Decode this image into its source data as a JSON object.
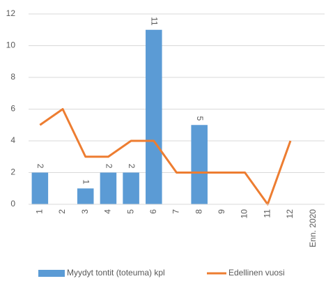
{
  "chart_data": {
    "type": "bar",
    "categories": [
      "1",
      "2",
      "3",
      "4",
      "5",
      "6",
      "7",
      "8",
      "9",
      "10",
      "11",
      "12",
      "Enn. 2020"
    ],
    "series": [
      {
        "name": "Myydyt tontit (toteuma) kpl",
        "type": "bar",
        "color": "#5b9bd5",
        "values": [
          2,
          null,
          1,
          2,
          2,
          11,
          null,
          5,
          null,
          null,
          null,
          null,
          null
        ]
      },
      {
        "name": "Edellinen vuosi",
        "type": "line",
        "color": "#ed7d31",
        "values": [
          5,
          6,
          3,
          3,
          4,
          4,
          2,
          2,
          2,
          2,
          0,
          4,
          null
        ]
      }
    ],
    "ylim": [
      0,
      12
    ],
    "yticks": [
      0,
      2,
      4,
      6,
      8,
      10,
      12
    ],
    "grid": true,
    "legend": "bottom"
  }
}
